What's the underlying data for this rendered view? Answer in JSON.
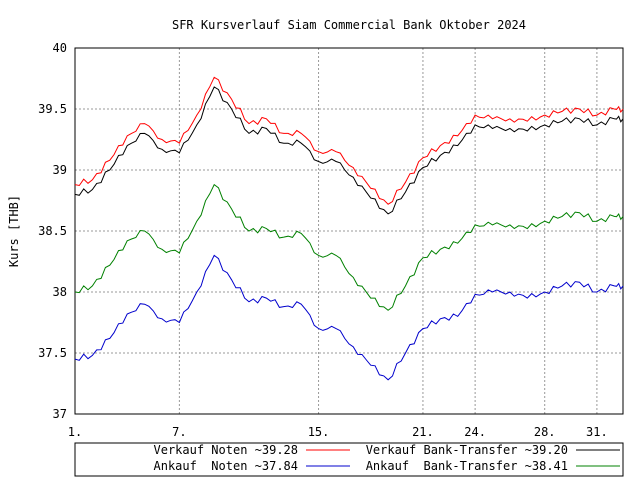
{
  "chart_data": {
    "type": "line",
    "title": "SFR Kursverlauf Siam Commercial Bank Oktober 2024",
    "xlabel": "",
    "ylabel": "Kurs [THB]",
    "ylim": [
      37,
      40
    ],
    "yticks": [
      "37",
      "37.5",
      "38",
      "38.5",
      "39",
      "39.5",
      "40"
    ],
    "xlim": [
      1,
      32.5
    ],
    "xticks": [
      {
        "day": 1,
        "label": "1."
      },
      {
        "day": 7,
        "label": "7."
      },
      {
        "day": 15,
        "label": "15."
      },
      {
        "day": 21,
        "label": "21."
      },
      {
        "day": 24,
        "label": "24."
      },
      {
        "day": 28,
        "label": "28."
      },
      {
        "day": 31,
        "label": "31."
      }
    ],
    "grid": true,
    "legend_position": "bottom",
    "x": [
      1,
      2,
      3,
      4,
      5,
      6,
      7,
      8,
      9,
      10,
      11,
      12,
      13,
      14,
      15,
      16,
      17,
      18,
      19,
      20,
      21,
      22,
      23,
      24,
      25,
      26,
      27,
      28,
      29,
      30,
      31,
      32
    ],
    "series": [
      {
        "name": "Verkauf Noten ~39.28",
        "color": "#ff0000",
        "values": [
          38.88,
          38.92,
          39.08,
          39.28,
          39.38,
          39.25,
          39.22,
          39.45,
          39.76,
          39.58,
          39.38,
          39.42,
          39.3,
          39.3,
          39.15,
          39.15,
          39.02,
          38.85,
          38.72,
          38.9,
          39.1,
          39.2,
          39.28,
          39.45,
          39.42,
          39.42,
          39.4,
          39.45,
          39.48,
          39.5,
          39.45,
          39.5
        ]
      },
      {
        "name": "Verkauf Bank-Transfer ~39.20",
        "color": "#000000",
        "values": [
          38.8,
          38.84,
          39.0,
          39.2,
          39.3,
          39.17,
          39.14,
          39.37,
          39.68,
          39.5,
          39.3,
          39.34,
          39.22,
          39.22,
          39.07,
          39.07,
          38.94,
          38.77,
          38.64,
          38.82,
          39.02,
          39.12,
          39.2,
          39.37,
          39.34,
          39.34,
          39.32,
          39.37,
          39.4,
          39.42,
          39.37,
          39.42
        ]
      },
      {
        "name": "Ankauf  Noten ~37.84",
        "color": "#0000cc",
        "values": [
          37.45,
          37.48,
          37.62,
          37.82,
          37.9,
          37.78,
          37.75,
          38.0,
          38.3,
          38.1,
          37.92,
          37.95,
          37.88,
          37.9,
          37.7,
          37.7,
          37.55,
          37.4,
          37.28,
          37.5,
          37.7,
          37.78,
          37.8,
          37.98,
          38.0,
          38.0,
          37.95,
          38.0,
          38.05,
          38.08,
          38.0,
          38.05
        ]
      },
      {
        "name": "Ankauf  Bank-Transfer ~38.41",
        "color": "#008000",
        "values": [
          38.0,
          38.05,
          38.22,
          38.42,
          38.5,
          38.35,
          38.32,
          38.58,
          38.88,
          38.68,
          38.5,
          38.52,
          38.45,
          38.48,
          38.3,
          38.3,
          38.12,
          37.95,
          37.85,
          38.05,
          38.28,
          38.35,
          38.4,
          38.55,
          38.55,
          38.55,
          38.52,
          38.58,
          38.62,
          38.65,
          38.58,
          38.62
        ]
      }
    ]
  }
}
